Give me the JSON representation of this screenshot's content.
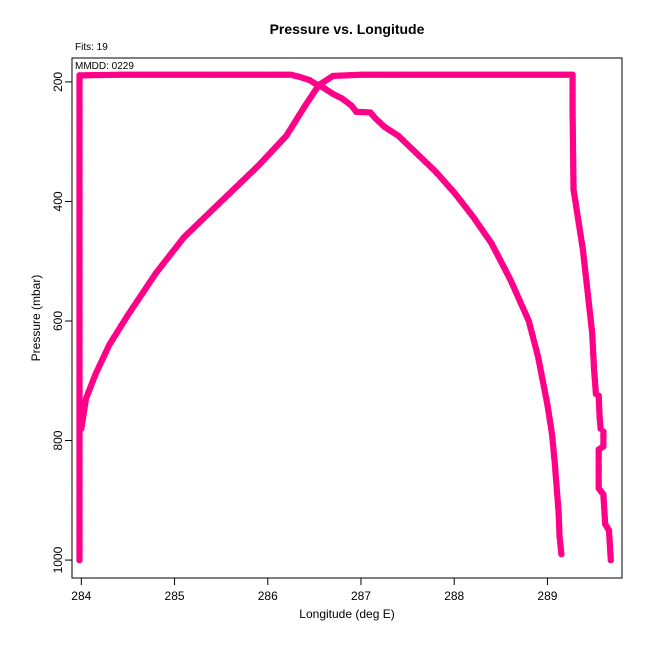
{
  "chart_data": {
    "type": "scatter",
    "title": "Pressure vs. Longitude",
    "annotations": {
      "fits": "Fits: 19",
      "mmdd": "MMDD: 0229"
    },
    "xlabel": "Longitude (deg E)",
    "ylabel": "Pressure (mbar)",
    "xlim": [
      283.9,
      289.8
    ],
    "ylim": [
      1030,
      160
    ],
    "y_reversed": true,
    "x_ticks": [
      284,
      285,
      286,
      287,
      288,
      289
    ],
    "y_ticks": [
      200,
      400,
      600,
      800,
      1000
    ],
    "grid": false,
    "legend": "none",
    "marker_color": "#ff0088",
    "series": [
      {
        "values": [
          [
            283.98,
            1000
          ],
          [
            283.98,
            900
          ],
          [
            283.98,
            800
          ],
          [
            283.98,
            700
          ],
          [
            283.98,
            600
          ],
          [
            283.98,
            500
          ],
          [
            283.98,
            400
          ],
          [
            283.98,
            330
          ],
          [
            283.98,
            250
          ],
          [
            283.98,
            189
          ],
          [
            284.4,
            188
          ],
          [
            285.0,
            188
          ],
          [
            285.5,
            188
          ],
          [
            286.0,
            188
          ],
          [
            286.25,
            188
          ],
          [
            286.35,
            192
          ],
          [
            286.45,
            197
          ],
          [
            286.5,
            202
          ],
          [
            286.6,
            210
          ],
          [
            286.7,
            220
          ],
          [
            286.8,
            228
          ],
          [
            286.9,
            240
          ],
          [
            286.95,
            250
          ],
          [
            287.1,
            251
          ],
          [
            287.15,
            260
          ],
          [
            287.25,
            275
          ],
          [
            287.35,
            285
          ],
          [
            287.4,
            290
          ],
          [
            287.5,
            305
          ],
          [
            287.6,
            320
          ],
          [
            287.8,
            350
          ],
          [
            288.0,
            385
          ],
          [
            288.2,
            425
          ],
          [
            288.4,
            470
          ],
          [
            288.6,
            530
          ],
          [
            288.8,
            600
          ],
          [
            288.9,
            660
          ],
          [
            288.95,
            700
          ],
          [
            289.0,
            740
          ],
          [
            289.05,
            790
          ],
          [
            289.08,
            840
          ],
          [
            289.1,
            880
          ],
          [
            289.12,
            920
          ],
          [
            289.13,
            960
          ],
          [
            289.15,
            990
          ]
        ]
      },
      {
        "values": [
          [
            284.0,
            780
          ],
          [
            284.05,
            730
          ],
          [
            284.15,
            690
          ],
          [
            284.3,
            640
          ],
          [
            284.5,
            590
          ],
          [
            284.8,
            520
          ],
          [
            285.1,
            460
          ],
          [
            285.5,
            400
          ],
          [
            285.9,
            340
          ],
          [
            286.2,
            290
          ],
          [
            286.4,
            240
          ],
          [
            286.55,
            205
          ],
          [
            286.7,
            190
          ],
          [
            287.0,
            188
          ],
          [
            287.5,
            188
          ],
          [
            288.0,
            188
          ],
          [
            288.5,
            188
          ],
          [
            289.0,
            188
          ],
          [
            289.27,
            188
          ],
          [
            289.27,
            250
          ],
          [
            289.28,
            380
          ],
          [
            289.33,
            430
          ],
          [
            289.38,
            480
          ],
          [
            289.43,
            550
          ],
          [
            289.48,
            620
          ],
          [
            289.5,
            680
          ],
          [
            289.52,
            722
          ],
          [
            289.55,
            725
          ],
          [
            289.56,
            760
          ],
          [
            289.57,
            780
          ],
          [
            289.6,
            785
          ],
          [
            289.6,
            810
          ],
          [
            289.55,
            815
          ],
          [
            289.55,
            840
          ],
          [
            289.55,
            880
          ],
          [
            289.6,
            890
          ],
          [
            289.62,
            940
          ],
          [
            289.66,
            950
          ],
          [
            289.68,
            1000
          ]
        ]
      }
    ]
  }
}
